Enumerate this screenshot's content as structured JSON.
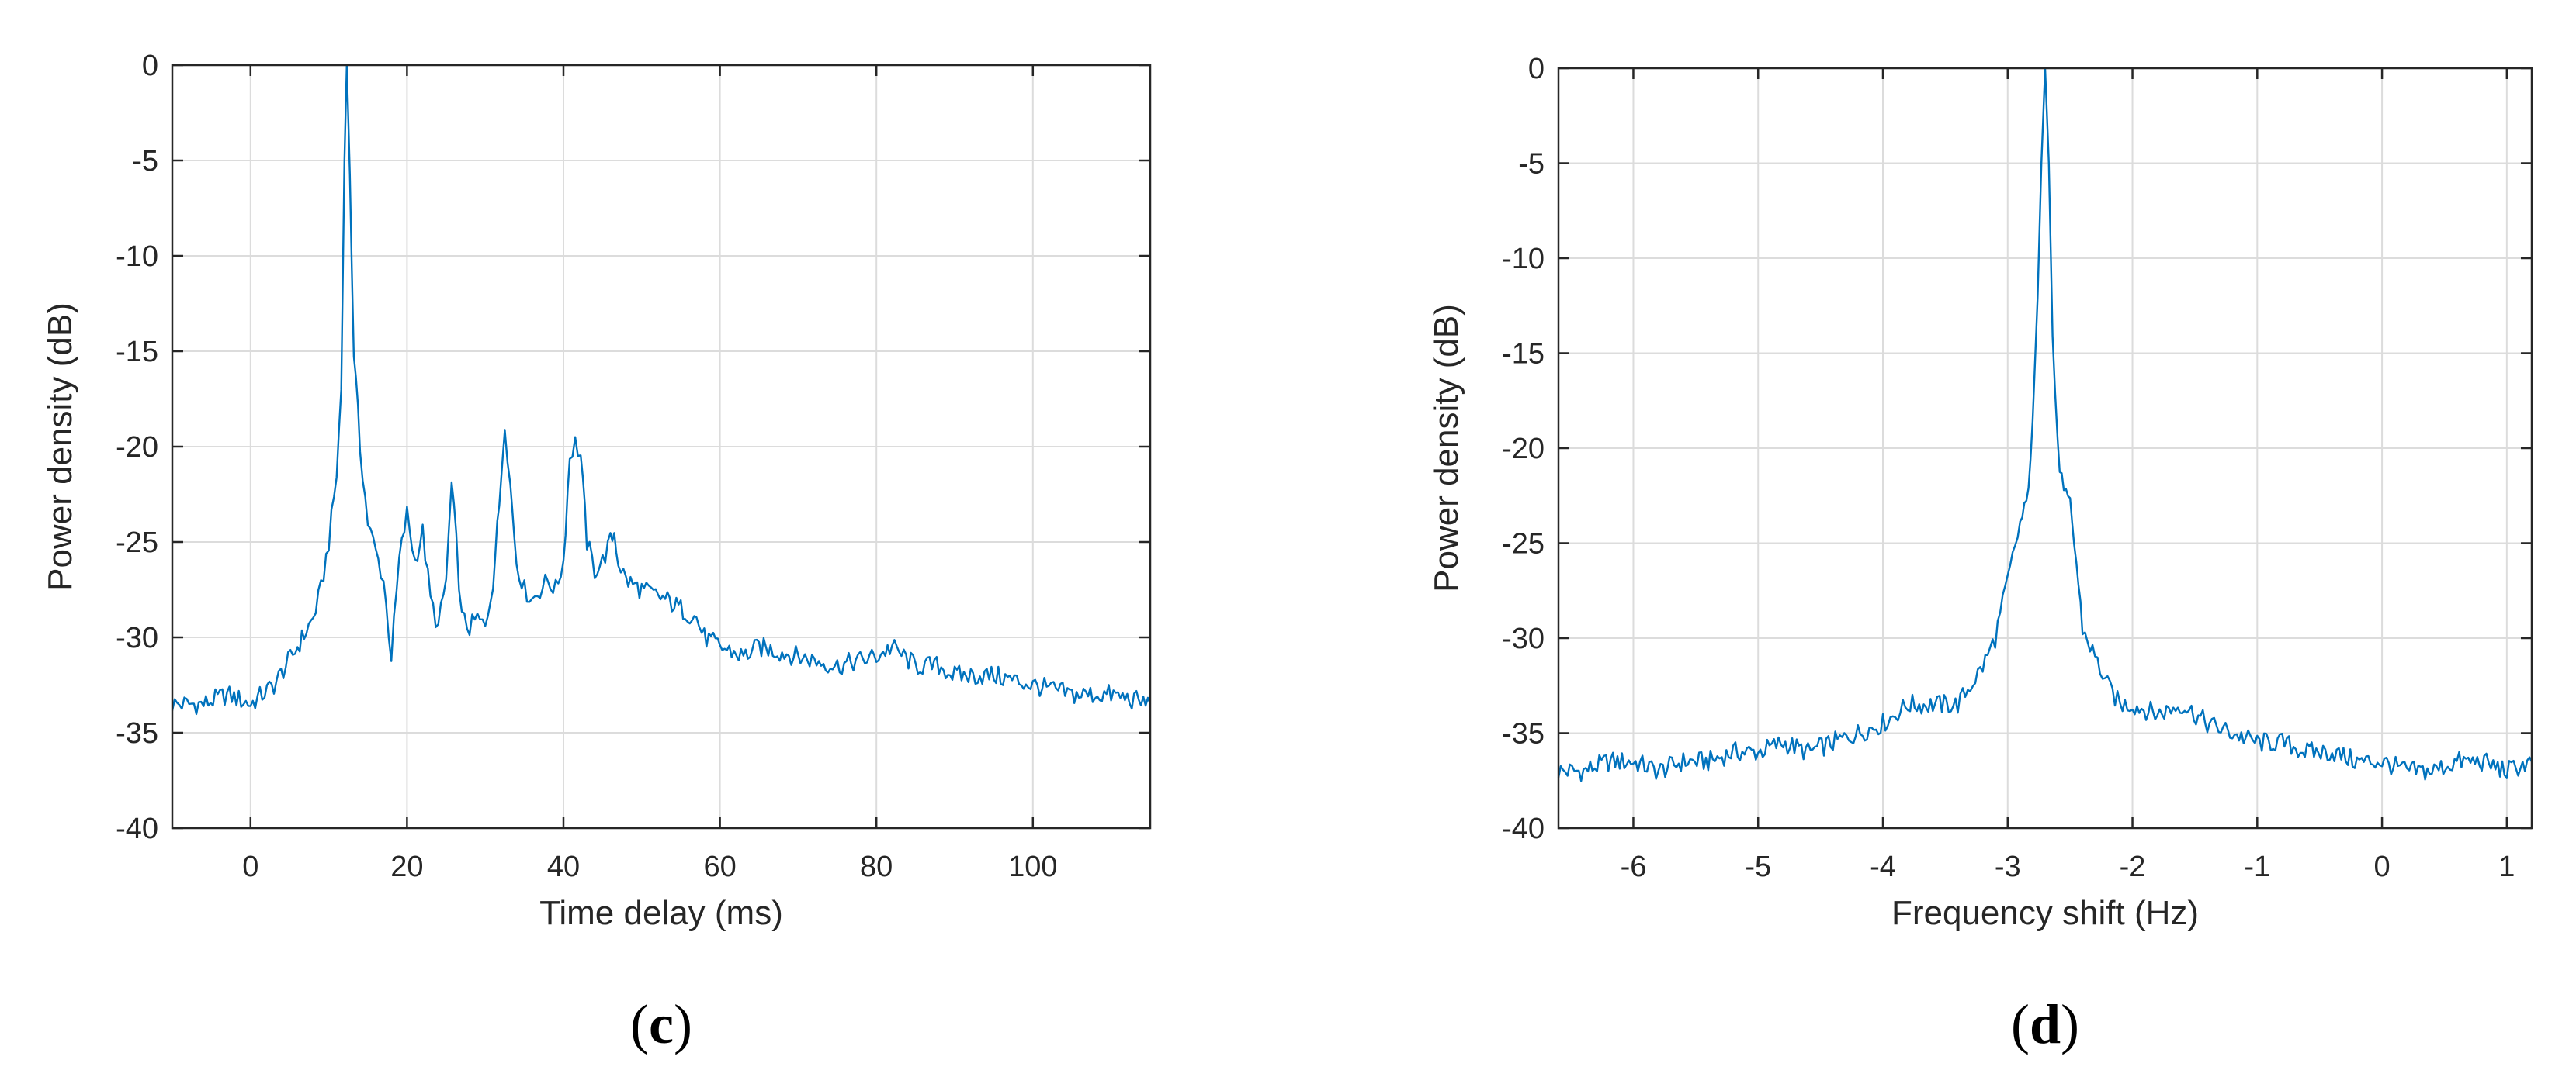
{
  "chart_data": [
    {
      "panel": "(c)",
      "panel_letter": "c",
      "type": "line",
      "title": "",
      "xlabel": "Time delay (ms)",
      "ylabel": "Power density (dB)",
      "xlim": [
        -10,
        115
      ],
      "ylim": [
        -40,
        0
      ],
      "xticks": [
        0,
        20,
        40,
        60,
        80,
        100
      ],
      "yticks": [
        0,
        -5,
        -10,
        -15,
        -20,
        -25,
        -30,
        -35,
        -40
      ],
      "grid": true,
      "series": [
        {
          "color": "#0072bd",
          "x": [
            -10,
            -6,
            -3,
            0,
            3,
            6,
            8,
            9,
            10,
            11,
            11.6,
            12,
            12.3,
            12.7,
            13.2,
            14,
            15,
            16,
            17,
            18,
            19,
            20,
            21,
            22,
            23,
            24,
            25,
            25.7,
            26.3,
            27,
            28,
            29,
            30,
            31,
            31.8,
            32.5,
            33.2,
            34,
            35,
            36,
            37,
            38,
            39,
            40,
            40.8,
            41.5,
            42.2,
            43,
            44,
            45,
            46,
            46.5,
            47,
            48,
            50,
            53,
            55,
            57,
            58,
            60,
            63,
            65,
            70,
            75,
            80,
            82,
            85,
            88,
            90,
            95,
            100,
            105,
            110,
            115
          ],
          "y": [
            -33.5,
            -33.5,
            -33,
            -33.5,
            -32.5,
            -30.5,
            -29,
            -27.5,
            -25,
            -21.5,
            -17,
            -5,
            0,
            -6,
            -15,
            -20,
            -24,
            -25.5,
            -27,
            -31,
            -26,
            -23.5,
            -26,
            -24.5,
            -28,
            -29.5,
            -27,
            -22,
            -25,
            -29,
            -29.5,
            -29,
            -29.5,
            -27,
            -23,
            -18.6,
            -22,
            -26,
            -27.5,
            -28,
            -27.5,
            -27,
            -27.5,
            -26,
            -20.5,
            -19.8,
            -20.5,
            -25,
            -26.5,
            -26,
            -25,
            -24.5,
            -26,
            -27,
            -27.5,
            -28,
            -28.5,
            -29,
            -30,
            -30.5,
            -31,
            -30.5,
            -31,
            -31.5,
            -31,
            -30.5,
            -31.5,
            -31.5,
            -32,
            -32,
            -32.5,
            -33,
            -33,
            -33.5
          ]
        }
      ]
    },
    {
      "panel": "(d)",
      "panel_letter": "d",
      "type": "line",
      "title": "",
      "xlabel": "Frequency shift (Hz)",
      "ylabel": "Power density (dB)",
      "xlim": [
        -6.6,
        1.2
      ],
      "ylim": [
        -40,
        0
      ],
      "xticks": [
        -6,
        -5,
        -4,
        -3,
        -2,
        -1,
        0,
        1
      ],
      "yticks": [
        0,
        -5,
        -10,
        -15,
        -20,
        -25,
        -30,
        -35,
        -40
      ],
      "grid": true,
      "series": [
        {
          "color": "#0072bd",
          "x": [
            -6.6,
            -6.4,
            -6.2,
            -6.0,
            -5.8,
            -5.6,
            -5.4,
            -5.2,
            -5.0,
            -4.8,
            -4.6,
            -4.4,
            -4.2,
            -4.0,
            -3.9,
            -3.8,
            -3.6,
            -3.4,
            -3.3,
            -3.2,
            -3.1,
            -3.0,
            -2.9,
            -2.85,
            -2.8,
            -2.76,
            -2.73,
            -2.7,
            -2.67,
            -2.64,
            -2.6,
            -2.55,
            -2.5,
            -2.45,
            -2.4,
            -2.3,
            -2.2,
            -2.1,
            -2.0,
            -1.8,
            -1.6,
            -1.4,
            -1.2,
            -1.0,
            -0.8,
            -0.6,
            -0.4,
            -0.2,
            0.0,
            0.2,
            0.4,
            0.6,
            0.8,
            1.0,
            1.2
          ],
          "y": [
            -37,
            -37,
            -36.5,
            -36.5,
            -37,
            -36.5,
            -36.5,
            -36,
            -36,
            -35.5,
            -36,
            -35.5,
            -35,
            -34.5,
            -34,
            -33.5,
            -33.5,
            -33.5,
            -32.5,
            -31.5,
            -30,
            -27,
            -24,
            -23,
            -19,
            -12,
            -5,
            0,
            -5,
            -14,
            -20,
            -22.5,
            -23,
            -26,
            -29.5,
            -31,
            -32.5,
            -33.5,
            -33.5,
            -34,
            -33.5,
            -34.5,
            -35,
            -35.5,
            -35.5,
            -36,
            -36,
            -36.5,
            -36.5,
            -37,
            -37,
            -36.5,
            -36.5,
            -37,
            -36.5
          ]
        }
      ]
    }
  ]
}
